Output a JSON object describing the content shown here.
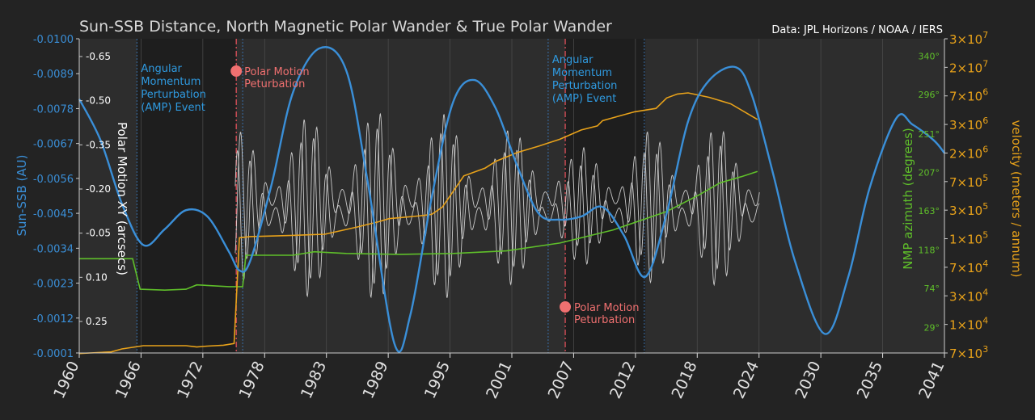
{
  "chart_data": {
    "type": "line",
    "title": "Sun-SSB Distance, North Magnetic Polar Wander & True Polar Wander",
    "source": "Data: JPL Horizons / NOAA / IERS",
    "x_axis": {
      "ticks": [
        "1960",
        "1966",
        "1972",
        "1978",
        "1983",
        "1989",
        "1995",
        "2001",
        "2007",
        "2012",
        "2018",
        "2024",
        "2030",
        "2035",
        "2041"
      ],
      "range": [
        1960,
        2041
      ]
    },
    "y_left": {
      "label": "Sun-SSB (AU)",
      "ticks": [
        "-0.0100",
        "-0.0089",
        "-0.0078",
        "-0.0067",
        "-0.0056",
        "-0.0045",
        "-0.0034",
        "-0.0023",
        "-0.0012",
        "-0.0001"
      ],
      "range": [
        -0.0001,
        -0.01
      ],
      "color": "#3a8fd8"
    },
    "y_inner_left": {
      "label": "Polar Motion XY (arcsecs)",
      "ticks": [
        "-0.65",
        "-0.50",
        "-0.35",
        "-0.20",
        "-0.05",
        "0.10",
        "0.25"
      ],
      "color": "#ffffff"
    },
    "y_right_inner": {
      "label": "NMP azimuth (degrees)",
      "ticks": [
        "340°",
        "296°",
        "251°",
        "207°",
        "163°",
        "118°",
        "74°",
        "29°"
      ],
      "range": [
        0,
        360
      ],
      "color": "#5fbf2a"
    },
    "y_right_outer": {
      "label": "velocity (meters / annum)",
      "ticks_base": [
        "3",
        "2",
        "7",
        "3",
        "2",
        "7",
        "3",
        "1",
        "7",
        "3",
        "1",
        "7"
      ],
      "ticks_exp": [
        "7",
        "7",
        "6",
        "6",
        "6",
        "5",
        "5",
        "5",
        "4",
        "4",
        "4",
        "3"
      ],
      "scale": "log",
      "color": "#e8a21a"
    },
    "shaded_spans": [
      [
        1965.4,
        1974.7
      ],
      [
        2005.5,
        2013.0
      ]
    ],
    "amp_lines": [
      1965.4,
      1975.3,
      2003.9,
      2012.9
    ],
    "pm_lines": [
      1974.7,
      2005.5
    ],
    "annotations": {
      "amp_label_1": [
        "Angular",
        "Momentum",
        "Perturbation",
        "(AMP) Event"
      ],
      "amp_label_2": [
        "Angular",
        "Momentum",
        "Perturbation",
        "(AMP) Event"
      ],
      "pm_label_1": [
        "Polar Motion",
        "Peturbation"
      ],
      "pm_label_2": [
        "Polar Motion",
        "Peturbation"
      ]
    },
    "series": [
      {
        "name": "Sun-SSB",
        "color": "#3a8fd8",
        "x": [
          1960,
          1962,
          1964,
          1966,
          1968,
          1970,
          1972,
          1974,
          1975,
          1976,
          1978,
          1980,
          1982.5,
          1985,
          1987,
          1989.5,
          1991,
          1993,
          1995,
          1997,
          1999,
          2001,
          2003,
          2005,
          2007,
          2009,
          2011,
          2013,
          2015,
          2017,
          2019,
          2021.5,
          2023,
          2025,
          2027,
          2029.8,
          2032,
          2034,
          2036.5,
          2038,
          2040,
          2041
        ],
        "y": [
          -0.0081,
          -0.0068,
          -0.0048,
          -0.0035,
          -0.004,
          -0.0046,
          -0.0044,
          -0.0033,
          -0.0027,
          -0.003,
          -0.0054,
          -0.0083,
          -0.0097,
          -0.009,
          -0.0055,
          -0.0004,
          -0.0013,
          -0.005,
          -0.008,
          -0.0087,
          -0.0078,
          -0.006,
          -0.0045,
          -0.0043,
          -0.0044,
          -0.0047,
          -0.0038,
          -0.0025,
          -0.0045,
          -0.0074,
          -0.0087,
          -0.0091,
          -0.0082,
          -0.0057,
          -0.003,
          -0.0007,
          -0.0025,
          -0.0053,
          -0.0075,
          -0.0073,
          -0.0068,
          -0.0064
        ]
      },
      {
        "name": "NMP azimuth",
        "color": "#5fbf2a",
        "x": [
          1960,
          1965,
          1965.7,
          1968,
          1970,
          1971,
          1974,
          1975.3,
          1975.6,
          1980,
          1982,
          1985,
          1990,
          1995,
          2000,
          2005,
          2010,
          2015,
          2018,
          2020,
          2022,
          2023.5
        ],
        "y": [
          108,
          108,
          73,
          72,
          73,
          78,
          76,
          76,
          112,
          112,
          116,
          114,
          113,
          114,
          117,
          126,
          141,
          162,
          181,
          195,
          202,
          208
        ]
      },
      {
        "name": "velocity",
        "color": "#e8a21a",
        "x": [
          1960,
          1961,
          1963,
          1964,
          1966,
          1967,
          1970,
          1971,
          1972,
          1973.5,
          1974.5,
          1975,
          1976,
          1980,
          1983,
          1986,
          1988,
          1989,
          1992,
          1993,
          1994,
          1996,
          1998,
          1999,
          2001,
          2003,
          2005,
          2007,
          2008.5,
          2009,
          2012,
          2014,
          2015,
          2016,
          2017,
          2019,
          2021,
          2023.5
        ],
        "y": [
          6900,
          7000,
          7200,
          7800,
          8500,
          8500,
          8500,
          8200,
          8400,
          8600,
          9000,
          150000,
          155000,
          160000,
          165000,
          200000,
          230000,
          250000,
          270000,
          280000,
          340000,
          780000,
          960000,
          1150000,
          1450000,
          1720000,
          2070000,
          2650000,
          2950000,
          3400000,
          4300000,
          4700000,
          6200000,
          6900000,
          7100000,
          6300000,
          5300000,
          3500000
        ]
      },
      {
        "name": "Polar Motion XY",
        "color": "#e6e6e6",
        "x_start": 1974.6,
        "x_end": 2023.7,
        "period_years": 1.19,
        "center": -0.17,
        "amplitude_envelope": [
          [
            1974.6,
            0.22
          ],
          [
            1982,
            0.28
          ],
          [
            1990,
            0.3
          ],
          [
            1998,
            0.27
          ],
          [
            2006,
            0.16
          ],
          [
            2012,
            0.22
          ],
          [
            2018,
            0.25
          ],
          [
            2023.7,
            0.22
          ]
        ]
      }
    ]
  }
}
